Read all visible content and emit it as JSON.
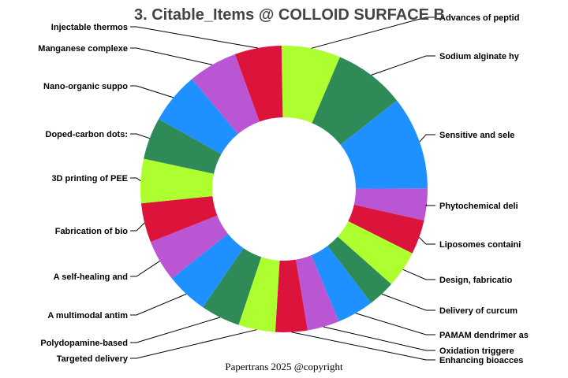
{
  "chart_data": {
    "type": "pie",
    "variant": "donut",
    "title": "3. Citable_Items @ COLLOID SURFACE B",
    "footer": "Papertrans 2025 @copyright",
    "start": "top",
    "direction": "clockwise",
    "palette": [
      "#ADFF2F",
      "#2E8B57",
      "#1E90FF",
      "#BA55D3",
      "#DC143C"
    ],
    "slices": [
      {
        "label": "Advances of peptid",
        "value": 24
      },
      {
        "label": "Sodium alginate hy",
        "value": 29
      },
      {
        "label": "Sensitive and sele",
        "value": 38
      },
      {
        "label": "Phytochemical deli",
        "value": 13
      },
      {
        "label": "Liposomes containi",
        "value": 14
      },
      {
        "label": "Design, fabricatio",
        "value": 15
      },
      {
        "label": "Delivery of curcum",
        "value": 11
      },
      {
        "label": "PAMAM dendrimer as",
        "value": 15
      },
      {
        "label": "Oxidation triggere",
        "value": 13
      },
      {
        "label": "Enhancing bioacces",
        "value": 13
      },
      {
        "label": "Targeted delivery",
        "value": 15
      },
      {
        "label": "Polydopamine-based",
        "value": 16
      },
      {
        "label": "A multimodal antim",
        "value": 17
      },
      {
        "label": "A self-healing and",
        "value": 17
      },
      {
        "label": "Fabrication of bio",
        "value": 16
      },
      {
        "label": "3D printing of PEE",
        "value": 18
      },
      {
        "label": "Doped-carbon dots:",
        "value": 17
      },
      {
        "label": "Nano-organic suppo",
        "value": 21
      },
      {
        "label": "Manganese complexe",
        "value": 20
      },
      {
        "label": "Injectable thermos",
        "value": 19
      }
    ]
  }
}
